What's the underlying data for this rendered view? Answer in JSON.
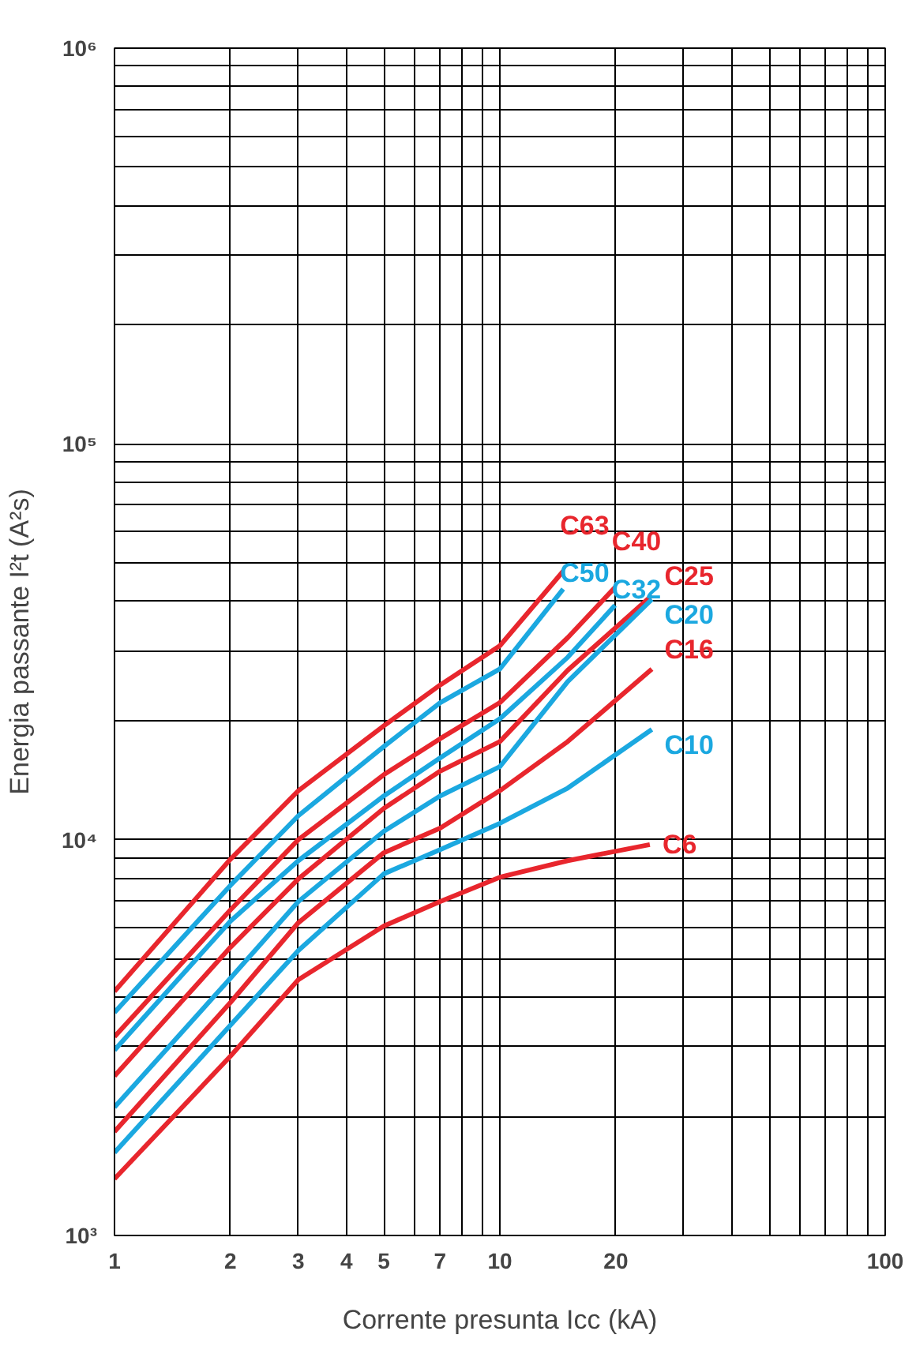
{
  "chart_data": {
    "type": "line",
    "xlabel": "Corrente presunta Icc (kA)",
    "ylabel": "Energia passante I²t (A²s)",
    "log": "xy",
    "grid": true,
    "legend": false,
    "line_style": "solid",
    "marker": "none",
    "xlim": [
      1,
      100
    ],
    "ylim": [
      1000,
      1000000
    ],
    "xticks": [
      1,
      2,
      3,
      4,
      5,
      {
        "value": 6,
        "label": null
      },
      7,
      {
        "value": 8,
        "label": null
      },
      {
        "value": 9,
        "label": null
      },
      10,
      20,
      {
        "value": 30,
        "label": null
      },
      {
        "value": 40,
        "label": null
      },
      {
        "value": 50,
        "label": null
      },
      {
        "value": 60,
        "label": null
      },
      {
        "value": 70,
        "label": null
      },
      {
        "value": 80,
        "label": null
      },
      {
        "value": 90,
        "label": null
      },
      100
    ],
    "yticks": [
      {
        "value": 1000,
        "label": "10³"
      },
      {
        "value": 2000,
        "label": null
      },
      {
        "value": 3000,
        "label": null
      },
      {
        "value": 4000,
        "label": null
      },
      {
        "value": 5000,
        "label": null
      },
      {
        "value": 6000,
        "label": null
      },
      {
        "value": 7000,
        "label": null
      },
      {
        "value": 8000,
        "label": null
      },
      {
        "value": 9000,
        "label": null
      },
      {
        "value": 10000,
        "label": "10⁴"
      },
      {
        "value": 20000,
        "label": null
      },
      {
        "value": 30000,
        "label": null
      },
      {
        "value": 40000,
        "label": null
      },
      {
        "value": 50000,
        "label": null
      },
      {
        "value": 60000,
        "label": null
      },
      {
        "value": 70000,
        "label": null
      },
      {
        "value": 80000,
        "label": null
      },
      {
        "value": 90000,
        "label": null
      },
      {
        "value": 100000,
        "label": "10⁵"
      },
      {
        "value": 200000,
        "label": null
      },
      {
        "value": 300000,
        "label": null
      },
      {
        "value": 400000,
        "label": null
      },
      {
        "value": 500000,
        "label": null
      },
      {
        "value": 600000,
        "label": null
      },
      {
        "value": 700000,
        "label": null
      },
      {
        "value": 800000,
        "label": null
      },
      {
        "value": 900000,
        "label": null
      },
      {
        "value": 1000000,
        "label": "10⁶"
      }
    ],
    "series": [
      {
        "name": "C63",
        "color": "#e8262d",
        "x": [
          1,
          2,
          3,
          5,
          7,
          10,
          14.6
        ],
        "values": [
          4140,
          8930,
          13300,
          19400,
          24600,
          30900,
          47700
        ]
      },
      {
        "name": "C50",
        "color": "#1ba8e0",
        "x": [
          1,
          2,
          3,
          5,
          7,
          10,
          14.6
        ],
        "values": [
          3660,
          7670,
          11500,
          17200,
          22200,
          27000,
          43000
        ]
      },
      {
        "name": "C40",
        "color": "#e8262d",
        "x": [
          1,
          2,
          3,
          5,
          7,
          10,
          15,
          19.9
        ],
        "values": [
          3180,
          6650,
          10000,
          14600,
          18000,
          22200,
          32400,
          43400
        ]
      },
      {
        "name": "C32",
        "color": "#1ba8e0",
        "x": [
          1,
          2,
          3,
          5,
          7,
          10,
          15,
          19.9
        ],
        "values": [
          2940,
          6230,
          8850,
          12900,
          16100,
          20200,
          28900,
          39100
        ]
      },
      {
        "name": "C25",
        "color": "#e8262d",
        "x": [
          1,
          2,
          3,
          5,
          7,
          10,
          15,
          24.8
        ],
        "values": [
          2530,
          5350,
          7960,
          12000,
          14900,
          17700,
          26800,
          41400
        ]
      },
      {
        "name": "C20",
        "color": "#1ba8e0",
        "x": [
          1,
          2,
          3,
          5,
          7,
          10,
          15,
          24.8
        ],
        "values": [
          2110,
          4470,
          6980,
          10500,
          12900,
          15300,
          25100,
          40500
        ]
      },
      {
        "name": "C16",
        "color": "#e8262d",
        "x": [
          1,
          2,
          3,
          5,
          7,
          10,
          15,
          24.8
        ],
        "values": [
          1830,
          3880,
          6170,
          9270,
          10700,
          13300,
          17700,
          27000
        ]
      },
      {
        "name": "C10",
        "color": "#1ba8e0",
        "x": [
          1,
          2,
          3,
          5,
          7,
          10,
          15,
          24.8
        ],
        "values": [
          1620,
          3400,
          5250,
          8200,
          9440,
          11000,
          13500,
          19000
        ]
      },
      {
        "name": "C6",
        "color": "#e8262d",
        "x": [
          1,
          2,
          3,
          5,
          7,
          10,
          15,
          24.5
        ],
        "values": [
          1390,
          2840,
          4430,
          6050,
          6980,
          8040,
          8850,
          9720
        ]
      }
    ]
  }
}
